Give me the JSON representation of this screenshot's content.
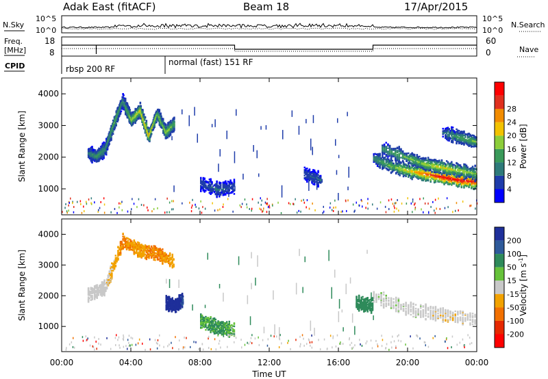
{
  "header": {
    "radar": "Adak East (fitACF)",
    "beam": "Beam 18",
    "date": "17/Apr/2015"
  },
  "top_panels": {
    "nsky_label": "N.Sky",
    "nsearch_label": "N.Search",
    "noise_ticks": [
      "10^5",
      "10^0"
    ],
    "freq_label_1": "Freq.",
    "freq_label_2": "[MHz]",
    "freq_ticks": [
      "18",
      "8"
    ],
    "nave_label": "Nave",
    "nave_ticks": [
      "60",
      "0"
    ],
    "cpid_label": "CPID",
    "cpid_segments": [
      {
        "name": "rbsp 200 RF",
        "start_hour": 0,
        "end_hour": 6
      },
      {
        "name": "normal (fast) 151 RF",
        "start_hour": 6,
        "end_hour": 24
      }
    ]
  },
  "panel_power": {
    "ylabel": "Slant Range [km]",
    "yticks": [
      "1000",
      "2000",
      "3000",
      "4000"
    ],
    "colorbar_label": "Power [dB]",
    "colorbar_ticks": [
      "4",
      "8",
      "12",
      "16",
      "20",
      "24",
      "28"
    ],
    "colors": [
      "#0000ff",
      "#1e3caa",
      "#2e7a7a",
      "#3a9a5a",
      "#8ccd3a",
      "#f2c200",
      "#f28c00",
      "#e0301e",
      "#ff0000"
    ]
  },
  "panel_velocity": {
    "ylabel": "Slant Range [km]",
    "yticks": [
      "1000",
      "2000",
      "3000",
      "4000"
    ],
    "colorbar_label": "Velocity [m s",
    "colorbar_label_sup": "-1",
    "colorbar_label_end": "]",
    "colorbar_ticks": [
      "200",
      "100",
      "50",
      "15",
      "-15",
      "-50",
      "-100",
      "-200"
    ],
    "colors": [
      "#1e2f9a",
      "#2e5a9a",
      "#2e8a5a",
      "#66c23a",
      "#c8c8c8",
      "#f2a200",
      "#f27000",
      "#e62800",
      "#ff0000"
    ]
  },
  "x_axis": {
    "label": "Time UT",
    "ticks": [
      "00:00",
      "04:00",
      "08:00",
      "12:00",
      "16:00",
      "20:00",
      "00:00"
    ]
  },
  "chart_data": [
    {
      "type": "heatmap",
      "title": "Power",
      "xlabel": "Time UT",
      "ylabel": "Slant Range [km]",
      "x_range_hours": [
        0,
        24
      ],
      "ylim": [
        180,
        4500
      ],
      "z_label": "Power [dB]",
      "z_range": [
        0,
        30
      ],
      "features": [
        {
          "hours": [
            1.5,
            2.0,
            2.5,
            3.0,
            3.5,
            4.0,
            4.5,
            5.0,
            5.5,
            6.0,
            6.5
          ],
          "range_km": [
            2150,
            2050,
            2300,
            3100,
            3800,
            3200,
            3500,
            2700,
            3400,
            2800,
            3100
          ],
          "power_db": [
            8,
            12,
            10,
            14,
            10,
            16,
            18,
            20,
            14,
            16,
            12
          ]
        },
        {
          "hours": [
            18.0,
            19.0,
            20.0,
            21.0,
            22.0,
            23.0,
            24.0
          ],
          "range_km": [
            2000,
            1750,
            1600,
            1500,
            1400,
            1300,
            1250
          ],
          "power_db": [
            10,
            14,
            18,
            24,
            28,
            28,
            26
          ]
        },
        {
          "hours": [
            18.5,
            20.0,
            21.0,
            22.0,
            23.0,
            24.0
          ],
          "range_km": [
            2300,
            2000,
            1800,
            1700,
            1600,
            1500
          ],
          "power_db": [
            10,
            14,
            16,
            18,
            16,
            14
          ]
        },
        {
          "hours": [
            8.0,
            9.0,
            10.0
          ],
          "range_km": [
            1200,
            1000,
            1100
          ],
          "power_db": [
            6,
            8,
            6
          ]
        },
        {
          "hours": [
            14.0,
            15.0
          ],
          "range_km": [
            1500,
            1300
          ],
          "power_db": [
            6,
            8
          ]
        },
        {
          "hours": [
            22.0,
            23.0,
            24.0
          ],
          "range_km": [
            2800,
            2650,
            2500
          ],
          "power_db": [
            8,
            12,
            14
          ]
        }
      ]
    },
    {
      "type": "heatmap",
      "title": "Velocity",
      "xlabel": "Time UT",
      "ylabel": "Slant Range [km]",
      "x_range_hours": [
        0,
        24
      ],
      "ylim": [
        180,
        4500
      ],
      "z_label": "Velocity [m s-1]",
      "z_range": [
        -200,
        200
      ],
      "features": [
        {
          "hours": [
            1.5,
            2.5,
            3.5,
            4.5,
            5.5,
            6.5
          ],
          "range_km": [
            2050,
            2300,
            3800,
            3500,
            3400,
            3100
          ],
          "velocity": [
            0,
            0,
            -50,
            -40,
            -60,
            -30
          ]
        },
        {
          "hours": [
            6.0,
            6.5,
            7.0
          ],
          "range_km": [
            1800,
            1700,
            1900
          ],
          "velocity": [
            200,
            180,
            150
          ]
        },
        {
          "hours": [
            18.0,
            20.0,
            22.0,
            24.0
          ],
          "range_km": [
            2000,
            1600,
            1400,
            1250
          ],
          "velocity": [
            0,
            5,
            -5,
            0
          ]
        },
        {
          "hours": [
            17.0,
            18.0
          ],
          "range_km": [
            1800,
            1700
          ],
          "velocity": [
            50,
            60
          ]
        },
        {
          "hours": [
            8.0,
            9.0,
            10.0
          ],
          "range_km": [
            1200,
            1000,
            900
          ],
          "velocity": [
            30,
            40,
            20
          ]
        }
      ]
    }
  ]
}
